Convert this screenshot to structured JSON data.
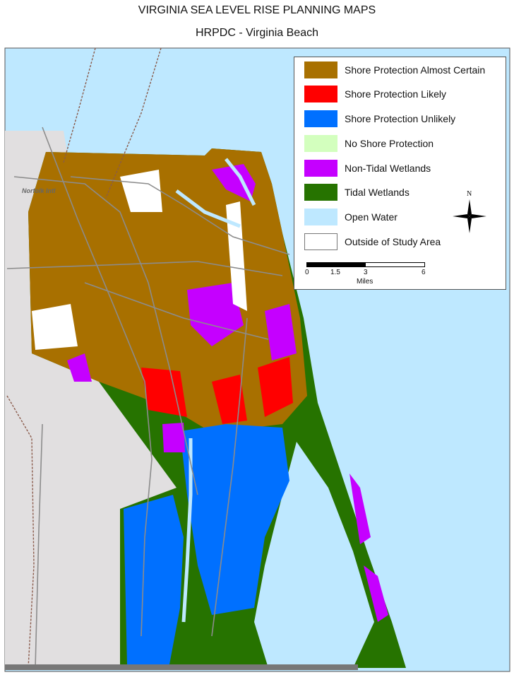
{
  "title": "VIRGINIA SEA LEVEL RISE PLANNING MAPS",
  "subtitle": "HRPDC - Virginia Beach",
  "place_labels": {
    "airport": "Norfolk Intl"
  },
  "legend": {
    "items": [
      {
        "label": "Shore Protection Almost Certain",
        "color": "#a87000"
      },
      {
        "label": "Shore Protection Likely",
        "color": "#ff0000"
      },
      {
        "label": "Shore Protection Unlikely",
        "color": "#0070ff"
      },
      {
        "label": "No Shore Protection",
        "color": "#d3ffbe"
      },
      {
        "label": "Non-Tidal Wetlands",
        "color": "#c500ff"
      },
      {
        "label": "Tidal Wetlands",
        "color": "#267300"
      },
      {
        "label": "Open Water",
        "color": "#bee8ff"
      },
      {
        "label": "Outside of Study Area",
        "color": "#ffffff"
      }
    ],
    "north_arrow": {
      "label": "N",
      "icon": "compass-rose-icon"
    },
    "scale_bar": {
      "ticks": [
        "0",
        "1.5",
        "3",
        "6"
      ],
      "unit": "Miles"
    }
  },
  "colors": {
    "land_outside": "#e1dfe0",
    "road": "#8c8c8c",
    "frame": "#555555"
  }
}
